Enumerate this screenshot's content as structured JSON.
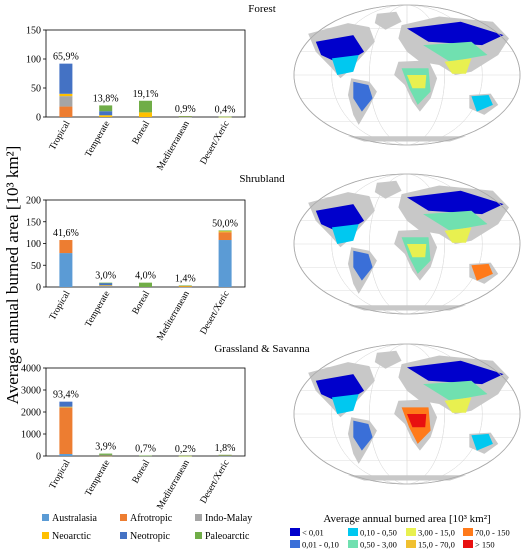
{
  "figure": {
    "ylabel_shared": "Average annual burned area [10³ km²]",
    "legend_bar": [
      {
        "name": "Australasia",
        "color": "#5b9bd5"
      },
      {
        "name": "Afrotropic",
        "color": "#ed7d31"
      },
      {
        "name": "Indo-Malay",
        "color": "#a5a5a5"
      },
      {
        "name": "Neoarctic",
        "color": "#ffc000"
      },
      {
        "name": "Neotropic",
        "color": "#4472c4"
      },
      {
        "name": "Paleoarctic",
        "color": "#70ad47"
      }
    ],
    "map_legend": {
      "title": "Average annual burned area [10³ km²]",
      "items": [
        {
          "label": "< 0,01",
          "color": "#0000cc"
        },
        {
          "label": "0,01 - 0,10",
          "color": "#3a6fd8"
        },
        {
          "label": "0,10 - 0,50",
          "color": "#00c8f0"
        },
        {
          "label": "0,50 - 3,00",
          "color": "#70e0b0"
        },
        {
          "label": "3,00 - 15,0",
          "color": "#e8f050"
        },
        {
          "label": "15,0 - 70,0",
          "color": "#f0c030"
        },
        {
          "label": "70,0 - 150",
          "color": "#ff7a1a"
        },
        {
          "label": "> 150",
          "color": "#e81010"
        }
      ]
    }
  },
  "chart_data": [
    {
      "type": "bar",
      "stacked": true,
      "title": "Forest",
      "ylim": [
        0,
        150
      ],
      "yticks": [
        0,
        50,
        100,
        150
      ],
      "categories": [
        "Tropical",
        "Temperate",
        "Boreal",
        "Mediterranean",
        "Desert/Xeric"
      ],
      "bar_labels": [
        "65,9%",
        "13,8%",
        "19,1%",
        "0,9%",
        "0,4%"
      ],
      "series": [
        {
          "name": "Australasia",
          "values": [
            0,
            0,
            0,
            0.5,
            0.2
          ]
        },
        {
          "name": "Afrotropic",
          "values": [
            18,
            0,
            0,
            0.3,
            0
          ]
        },
        {
          "name": "Indo-Malay",
          "values": [
            18,
            0,
            0,
            0,
            0
          ]
        },
        {
          "name": "Neoarctic",
          "values": [
            4,
            3,
            8,
            0.5,
            0.2
          ]
        },
        {
          "name": "Neotropic",
          "values": [
            52,
            7,
            0,
            0.2,
            0
          ]
        },
        {
          "name": "Paleoarctic",
          "values": [
            0,
            10,
            20,
            0.2,
            0.3
          ]
        }
      ]
    },
    {
      "type": "bar",
      "stacked": true,
      "title": "Shrubland",
      "ylim": [
        0,
        200
      ],
      "yticks": [
        0,
        50,
        100,
        150,
        200
      ],
      "categories": [
        "Tropical",
        "Temperate",
        "Boreal",
        "Mediterranean",
        "Desert/Xeric"
      ],
      "bar_labels": [
        "41,6%",
        "3,0%",
        "4,0%",
        "1,4%",
        "50,0%"
      ],
      "series": [
        {
          "name": "Australasia",
          "values": [
            78,
            2,
            0,
            1,
            108
          ]
        },
        {
          "name": "Afrotropic",
          "values": [
            30,
            1,
            0,
            0.5,
            18
          ]
        },
        {
          "name": "Indo-Malay",
          "values": [
            0,
            0,
            0,
            0,
            0
          ]
        },
        {
          "name": "Neoarctic",
          "values": [
            0,
            1,
            0,
            1,
            2
          ]
        },
        {
          "name": "Neotropic",
          "values": [
            0,
            5,
            0,
            0,
            0
          ]
        },
        {
          "name": "Paleoarctic",
          "values": [
            0,
            1,
            10,
            1,
            2
          ]
        }
      ]
    },
    {
      "type": "bar",
      "stacked": true,
      "title": "Grassland & Savanna",
      "ylim": [
        0,
        4000
      ],
      "yticks": [
        0,
        1000,
        2000,
        3000,
        4000
      ],
      "categories": [
        "Tropical",
        "Temperate",
        "Boreal",
        "Mediterranean",
        "Desert/Xeric"
      ],
      "bar_labels": [
        "93,4%",
        "3,9%",
        "0,7%",
        "0,2%",
        "1,8%"
      ],
      "series": [
        {
          "name": "Australasia",
          "values": [
            90,
            0,
            0,
            0,
            20
          ]
        },
        {
          "name": "Afrotropic",
          "values": [
            2110,
            0,
            0,
            0,
            10
          ]
        },
        {
          "name": "Indo-Malay",
          "values": [
            20,
            0,
            0,
            0,
            0
          ]
        },
        {
          "name": "Neoarctic",
          "values": [
            20,
            20,
            0,
            5,
            5
          ]
        },
        {
          "name": "Neotropic",
          "values": [
            230,
            30,
            0,
            0,
            5
          ]
        },
        {
          "name": "Paleoarctic",
          "values": [
            0,
            60,
            20,
            5,
            15
          ]
        }
      ]
    }
  ]
}
